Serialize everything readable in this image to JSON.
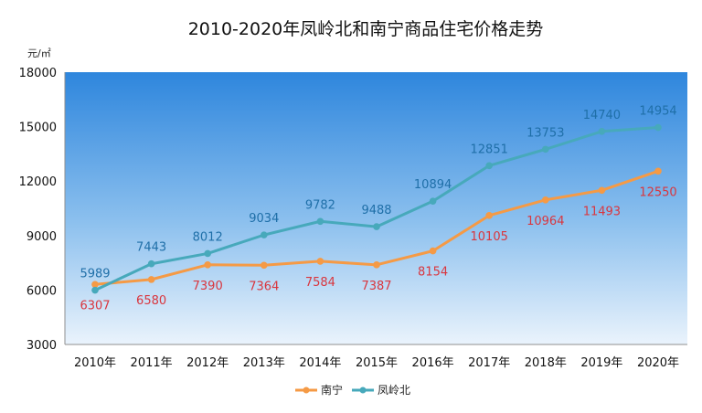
{
  "chart_data": {
    "type": "line",
    "title": "2010-2020年凤岭北和南宁商品住宅价格走势",
    "unit_label": "元/㎡",
    "categories": [
      "2010年",
      "2011年",
      "2012年",
      "2013年",
      "2014年",
      "2015年",
      "2016年",
      "2017年",
      "2018年",
      "2019年",
      "2020年"
    ],
    "series": [
      {
        "name": "南宁",
        "color": "#f59a45",
        "label_color": "#d9363e",
        "values": [
          6307,
          6580,
          7390,
          7364,
          7584,
          7387,
          8154,
          10105,
          10964,
          11493,
          12550
        ]
      },
      {
        "name": "凤岭北",
        "color": "#47a9bb",
        "label_color": "#1f6fa8",
        "values": [
          5989,
          7443,
          8012,
          9034,
          9782,
          9488,
          10894,
          12851,
          13753,
          14740,
          14954
        ]
      }
    ],
    "ylim": [
      3000,
      18000
    ],
    "yticks": [
      3000,
      6000,
      9000,
      12000,
      15000,
      18000
    ],
    "xlabel": "",
    "ylabel": "",
    "legend_position": "bottom-center",
    "grid": false
  }
}
